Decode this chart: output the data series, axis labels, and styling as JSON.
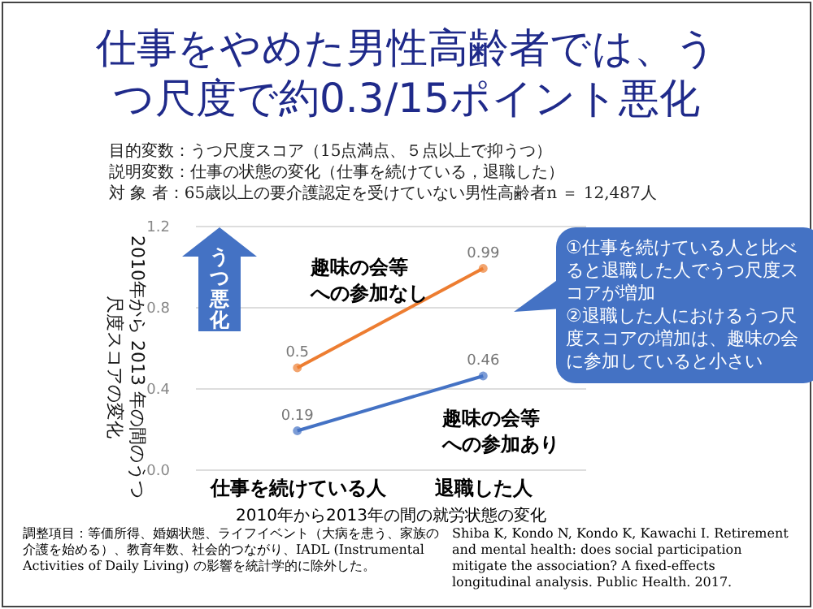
{
  "chart_data": {
    "type": "line",
    "title": "仕事をやめた男性高齢者では、うつ尺度で約0.3/15ポイント悪化",
    "xlabel": "2010年から2013年の間の就労状態の変化",
    "ylabel": "2010年から 2013 年の間のうつ尺度スコアの変化",
    "categories": [
      "仕事を続けている人",
      "退職した人"
    ],
    "series": [
      {
        "name": "趣味の会等への参加なし",
        "color": "#ed7d31",
        "values": [
          0.5,
          0.99
        ]
      },
      {
        "name": "趣味の会等への参加あり",
        "color": "#4472c4",
        "values": [
          0.19,
          0.46
        ]
      }
    ],
    "ylim": [
      0,
      1.2
    ],
    "yticks": [
      {
        "value": 0,
        "label": "0.0"
      },
      0.4,
      0.8,
      1.2
    ],
    "grid": "y",
    "data_labels": true,
    "marker": "circle",
    "legend": false,
    "annotations": [
      "目的変数：うつ尺度スコア（15点満点、５点以上で抑うつ）",
      "説明変数：仕事の状態の変化（仕事を続けている，退職した）",
      "対 象 者：65歳以上の要介護認定を受けていない男性高齢者n ＝ 12,487人",
      "うつ悪化",
      "①仕事を続けている人と比べると退職した人でうつ尺度スコアが増加\n②退職した人におけるうつ尺度スコアの増加は、趣味の会に参加していると小さい",
      "調整項目：等価所得、婚姻状態、ライフイベント（大病を患う、家族の介護を始める）、教育年数、社会的つながり、IADL (Instrumental Activities of Daily Living) の影響を統計学的に除外した。",
      "Shiba K, Kondo N, Kondo K, Kawachi I. Retirement and mental health: does social participation mitigate the association? A fixed-effects longitudinal analysis. Public Health. 2017."
    ]
  }
}
